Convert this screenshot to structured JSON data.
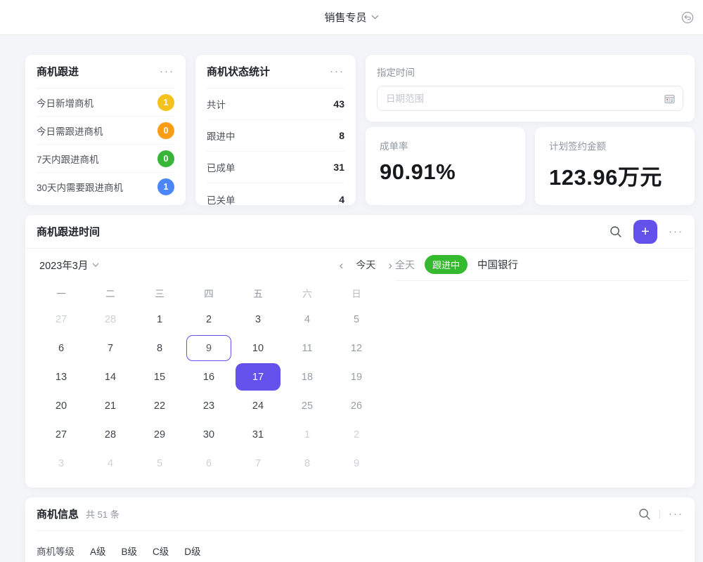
{
  "topbar": {
    "title": "销售专员"
  },
  "cards": {
    "follow_up": {
      "title": "商机跟进",
      "more": "···",
      "rows": [
        {
          "label": "今日新增商机",
          "value": "1",
          "color": "#f5c21d"
        },
        {
          "label": "今日需跟进商机",
          "value": "0",
          "color": "#fa9d15"
        },
        {
          "label": "7天内跟进商机",
          "value": "0",
          "color": "#39b53a"
        },
        {
          "label": "30天内需要跟进商机",
          "value": "1",
          "color": "#4b87f8"
        }
      ]
    },
    "status_stats": {
      "title": "商机状态统计",
      "more": "···",
      "rows": [
        {
          "label": "共计",
          "value": "43"
        },
        {
          "label": "跟进中",
          "value": "8"
        },
        {
          "label": "已成单",
          "value": "31"
        },
        {
          "label": "已关单",
          "value": "4"
        }
      ]
    },
    "time_filter": {
      "label": "指定时间",
      "placeholder": "日期范围"
    },
    "close_rate": {
      "label": "成单率",
      "value": "90.91%"
    },
    "planned_amount": {
      "label": "计划签约金额",
      "value": "123.96万元"
    }
  },
  "calendar_card": {
    "title": "商机跟进时间",
    "plus_label": "+",
    "more": "···",
    "month_label": "2023年3月",
    "prev": "‹",
    "next": "›",
    "today_label": "今天",
    "weekdays": [
      "一",
      "二",
      "三",
      "四",
      "五",
      "六",
      "日"
    ],
    "days": [
      {
        "d": "27",
        "type": "out"
      },
      {
        "d": "28",
        "type": "out"
      },
      {
        "d": "1",
        "type": "wk"
      },
      {
        "d": "2",
        "type": "wk"
      },
      {
        "d": "3",
        "type": "wk"
      },
      {
        "d": "4",
        "type": "we"
      },
      {
        "d": "5",
        "type": "we"
      },
      {
        "d": "6",
        "type": "wk"
      },
      {
        "d": "7",
        "type": "wk"
      },
      {
        "d": "8",
        "type": "wk"
      },
      {
        "d": "9",
        "type": "outline"
      },
      {
        "d": "10",
        "type": "wk"
      },
      {
        "d": "11",
        "type": "we"
      },
      {
        "d": "12",
        "type": "we"
      },
      {
        "d": "13",
        "type": "wk"
      },
      {
        "d": "14",
        "type": "wk"
      },
      {
        "d": "15",
        "type": "wk"
      },
      {
        "d": "16",
        "type": "wk"
      },
      {
        "d": "17",
        "type": "fill"
      },
      {
        "d": "18",
        "type": "we"
      },
      {
        "d": "19",
        "type": "we"
      },
      {
        "d": "20",
        "type": "wk"
      },
      {
        "d": "21",
        "type": "wk"
      },
      {
        "d": "22",
        "type": "wk"
      },
      {
        "d": "23",
        "type": "wk"
      },
      {
        "d": "24",
        "type": "wk"
      },
      {
        "d": "25",
        "type": "we"
      },
      {
        "d": "26",
        "type": "we"
      },
      {
        "d": "27",
        "type": "wk"
      },
      {
        "d": "28",
        "type": "wk"
      },
      {
        "d": "29",
        "type": "wk"
      },
      {
        "d": "30",
        "type": "wk"
      },
      {
        "d": "31",
        "type": "wk"
      },
      {
        "d": "1",
        "type": "out"
      },
      {
        "d": "2",
        "type": "out"
      },
      {
        "d": "3",
        "type": "out"
      },
      {
        "d": "4",
        "type": "out"
      },
      {
        "d": "5",
        "type": "out"
      },
      {
        "d": "6",
        "type": "out"
      },
      {
        "d": "7",
        "type": "out"
      },
      {
        "d": "8",
        "type": "out"
      },
      {
        "d": "9",
        "type": "out"
      }
    ],
    "events": {
      "all_day": "全天",
      "status": "跟进中",
      "name": "中国银行"
    }
  },
  "info_card": {
    "title": "商机信息",
    "count": "共 51 条",
    "more": "···",
    "filter_label": "商机等级",
    "options": [
      "A级",
      "B级",
      "C级",
      "D级"
    ]
  },
  "colors": {
    "accent": "#6450eb",
    "status_green": "#35ba2f",
    "page_bg": "#f4f5f8"
  }
}
